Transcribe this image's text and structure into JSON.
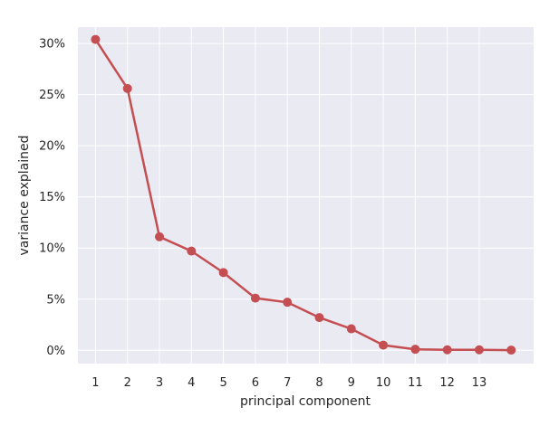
{
  "chart_data": {
    "type": "line",
    "title": "",
    "xlabel": "principal component",
    "ylabel": "variance explained",
    "x": [
      1,
      2,
      3,
      4,
      5,
      6,
      7,
      8,
      9,
      10,
      11,
      12,
      13,
      14
    ],
    "xticks": [
      "1",
      "2",
      "3",
      "4",
      "5",
      "6",
      "7",
      "8",
      "9",
      "10",
      "11",
      "12",
      "13"
    ],
    "yticks": [
      "0%",
      "5%",
      "10%",
      "15%",
      "20%",
      "25%",
      "30%"
    ],
    "ytick_values": [
      0,
      5,
      10,
      15,
      20,
      25,
      30
    ],
    "ylim": [
      -1.3,
      31.6
    ],
    "xlim": [
      0.45,
      14.7
    ],
    "grid": true,
    "background": "#eaeaf2",
    "series": [
      {
        "color": "#c44e52",
        "values": [
          30.4,
          25.6,
          11.1,
          9.7,
          7.6,
          5.1,
          4.7,
          3.2,
          2.1,
          0.5,
          0.1,
          0.05,
          0.05,
          0.02
        ]
      }
    ]
  }
}
